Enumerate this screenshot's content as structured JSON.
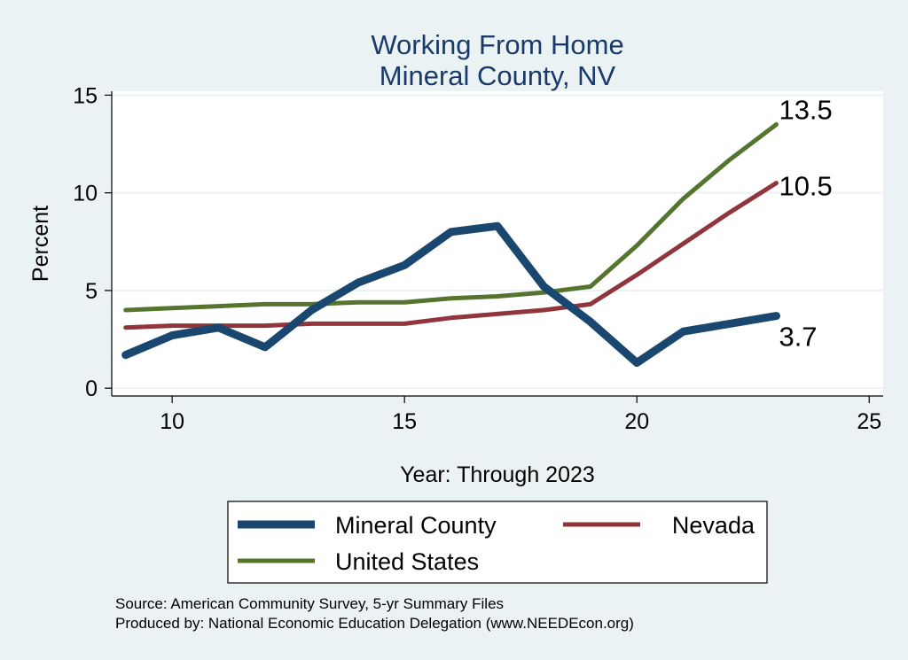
{
  "chart_data": {
    "type": "line",
    "title": "Working From Home",
    "subtitle": "Mineral County, NV",
    "xlabel": "Year: Through 2023",
    "ylabel": "Percent",
    "xlim": [
      8.7,
      25.3
    ],
    "ylim": [
      -0.4,
      15.2
    ],
    "xticks": [
      10,
      15,
      20,
      25
    ],
    "yticks": [
      0,
      5,
      10,
      15
    ],
    "grid": true,
    "legend_position": "bottom",
    "series": [
      {
        "name": "Mineral County",
        "color": "#1a476f",
        "x": [
          9,
          10,
          11,
          12,
          13,
          14,
          15,
          16,
          17,
          18,
          19,
          20,
          21,
          22,
          23
        ],
        "y": [
          1.7,
          2.7,
          3.1,
          2.1,
          4.0,
          5.4,
          6.3,
          8.0,
          8.3,
          5.2,
          3.4,
          1.3,
          2.9,
          3.3,
          3.7
        ],
        "end_label": "3.7"
      },
      {
        "name": "Nevada",
        "color": "#90353b",
        "x": [
          9,
          10,
          11,
          12,
          13,
          14,
          15,
          16,
          17,
          18,
          19,
          20,
          21,
          22,
          23
        ],
        "y": [
          3.1,
          3.2,
          3.2,
          3.2,
          3.3,
          3.3,
          3.3,
          3.6,
          3.8,
          4.0,
          4.3,
          5.8,
          7.4,
          9.0,
          10.5
        ],
        "end_label": "10.5"
      },
      {
        "name": "United States",
        "color": "#55752f",
        "x": [
          9,
          10,
          11,
          12,
          13,
          14,
          15,
          16,
          17,
          18,
          19,
          20,
          21,
          22,
          23
        ],
        "y": [
          4.0,
          4.1,
          4.2,
          4.3,
          4.3,
          4.4,
          4.4,
          4.6,
          4.7,
          4.9,
          5.2,
          7.3,
          9.7,
          11.7,
          13.5
        ],
        "end_label": "13.5"
      }
    ]
  },
  "source_note": "Source: American Community Survey, 5-yr Summary Files",
  "producer_note": "Produced by: National Economic Education Delegation (www.NEEDEcon.org)"
}
